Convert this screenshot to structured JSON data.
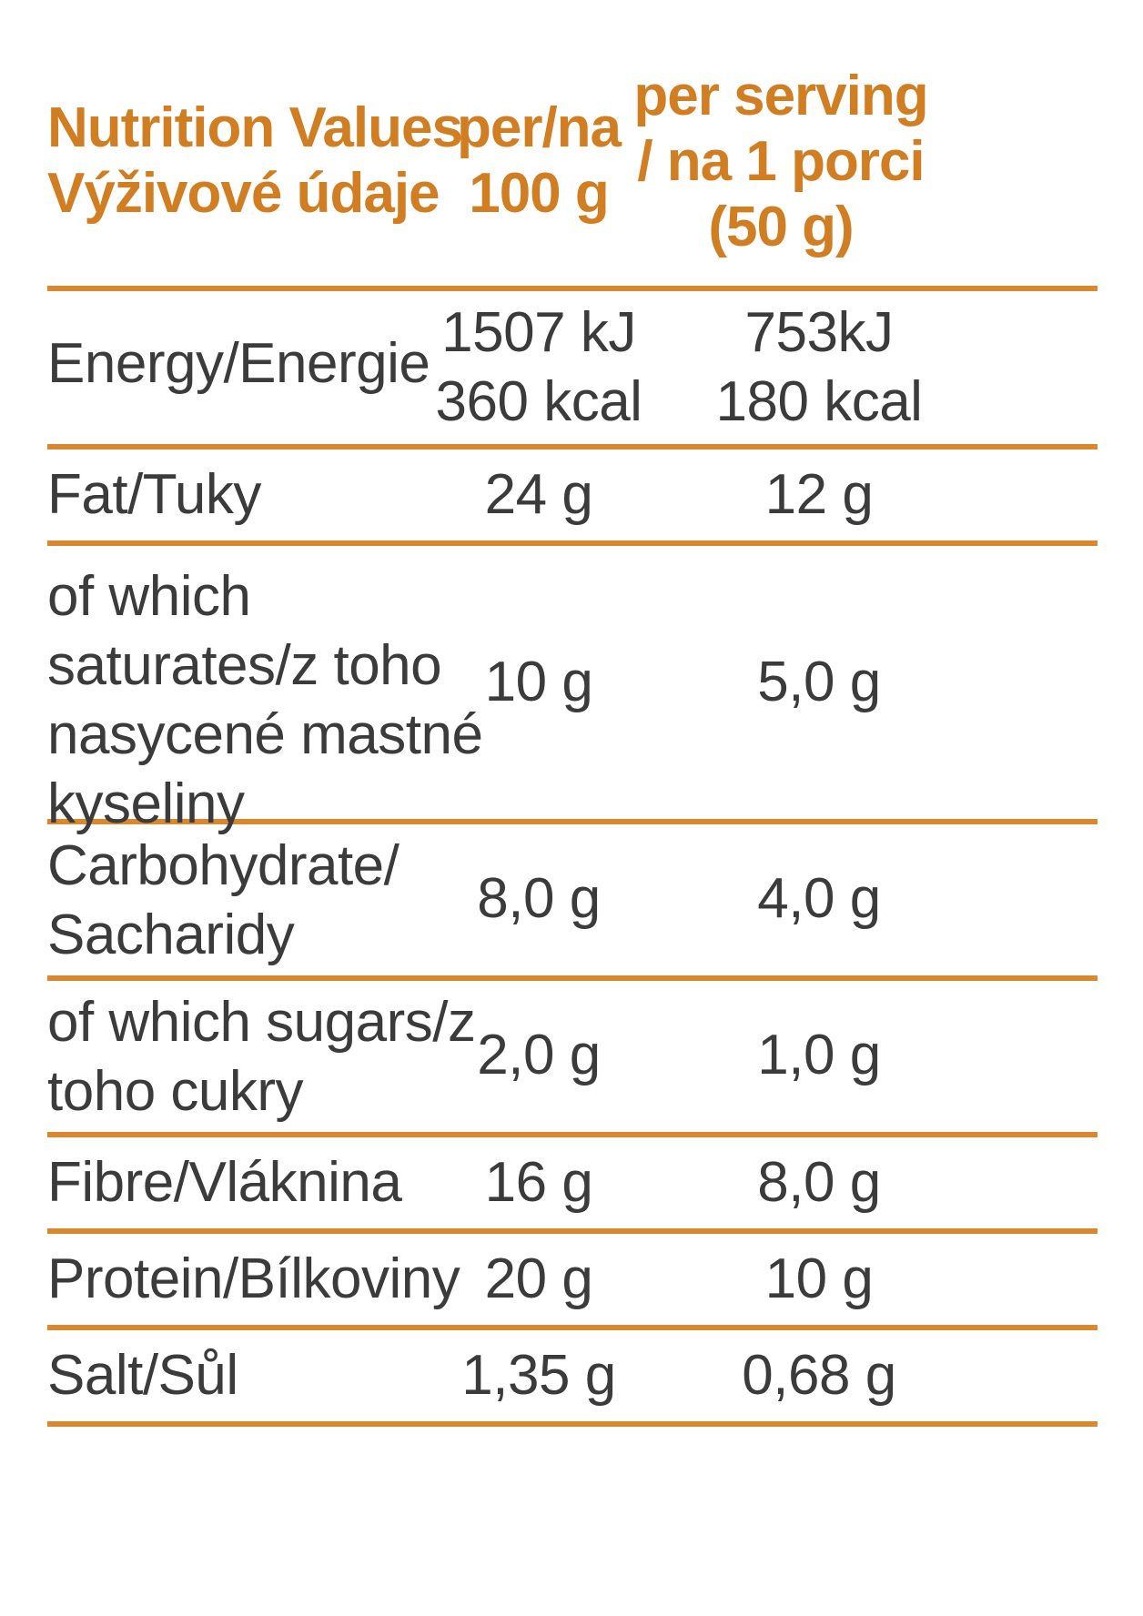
{
  "header": {
    "label_line1": "Nutrition Values",
    "label_line2": "Výživové údaje",
    "col1_line1": "per/na",
    "col1_line2": "100 g",
    "col2_line1": "per serving",
    "col2_line2": "/ na 1 porci",
    "col2_line3": "(50 g)"
  },
  "rows": [
    {
      "label": [
        "Energy/Energie"
      ],
      "per100": [
        "1507 kJ",
        "360 kcal"
      ],
      "serving": [
        "753kJ",
        "180 kcal"
      ]
    },
    {
      "label": [
        "Fat/Tuky"
      ],
      "per100": [
        "24 g"
      ],
      "serving": [
        "12 g"
      ]
    },
    {
      "label": [
        "of which",
        "saturates/z toho",
        "nasycené mastné",
        "kyseliny"
      ],
      "per100": [
        "10 g"
      ],
      "serving": [
        "5,0 g"
      ]
    },
    {
      "label": [
        "Carbohydrate/",
        "Sacharidy"
      ],
      "per100": [
        "8,0 g"
      ],
      "serving": [
        "4,0 g"
      ]
    },
    {
      "label": [
        "of which sugars/z",
        "toho cukry"
      ],
      "per100": [
        "2,0 g"
      ],
      "serving": [
        "1,0 g"
      ]
    },
    {
      "label": [
        "Fibre/Vláknina"
      ],
      "per100": [
        "16 g"
      ],
      "serving": [
        "8,0 g"
      ]
    },
    {
      "label": [
        "Protein/Bílkoviny"
      ],
      "per100": [
        "20 g"
      ],
      "serving": [
        "10 g"
      ]
    },
    {
      "label": [
        "Salt/Sůl"
      ],
      "per100": [
        "1,35 g"
      ],
      "serving": [
        "0,68 g"
      ]
    }
  ],
  "colors": {
    "accent": "#d17e22",
    "rule": "#d9882f",
    "text": "#3b3b3b"
  }
}
